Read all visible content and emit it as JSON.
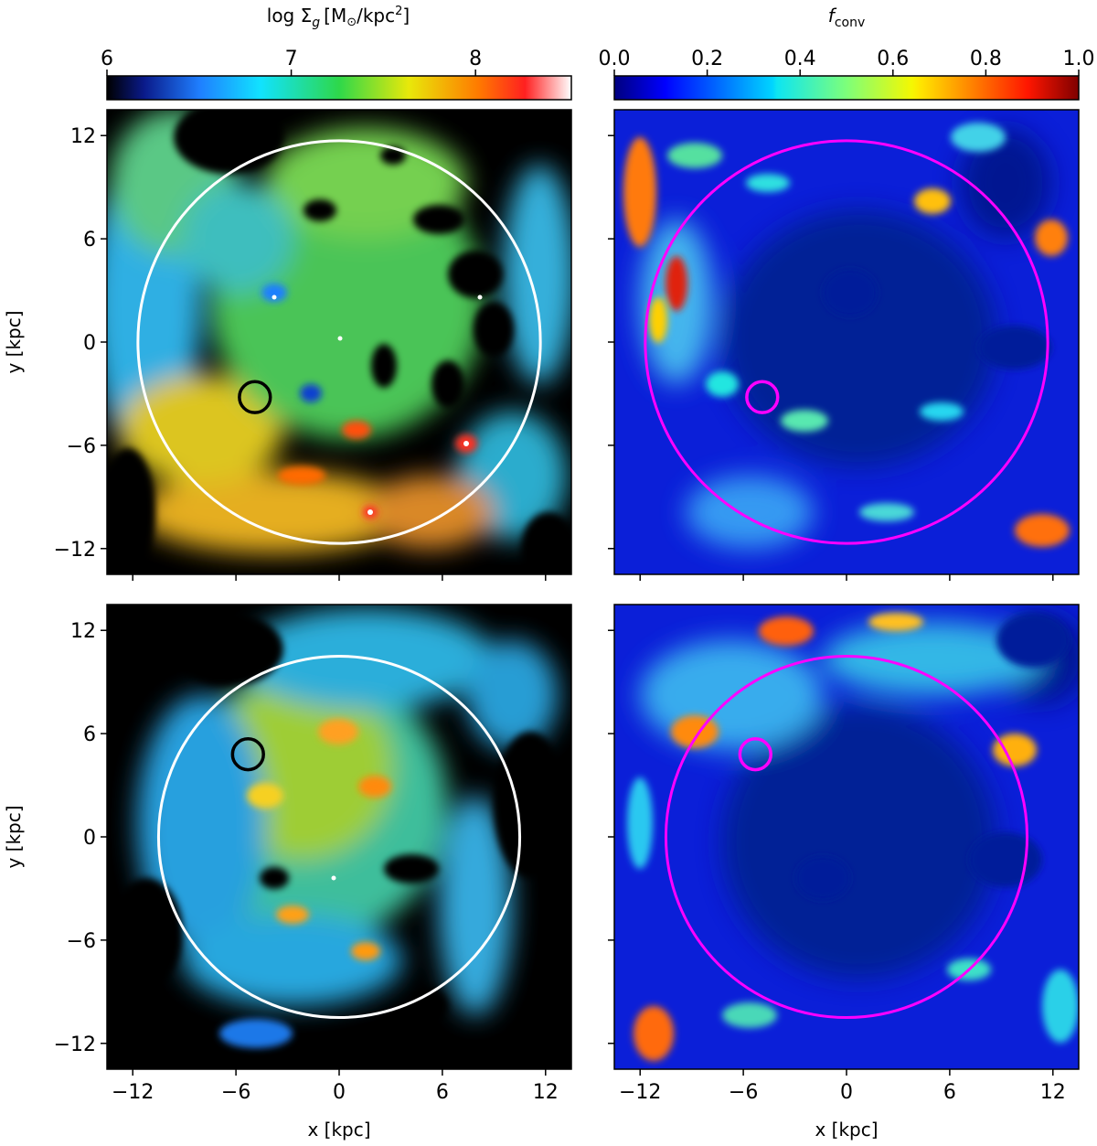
{
  "figure": {
    "colorbars": [
      {
        "label_main": "log Σ",
        "label_sub": "g",
        "label_units": "[M",
        "label_sun": "⊙",
        "label_tail": "/kpc",
        "label_sup": "2",
        "label_end": "]",
        "colormap": "jet",
        "range": [
          6,
          8.52
        ],
        "ticks": [
          "6",
          "7",
          "8"
        ],
        "tick_values": [
          6,
          7,
          8
        ],
        "top_color": "#ffffff"
      },
      {
        "label_main": "f",
        "label_sub": "conv",
        "colormap": "jet",
        "range": [
          0.0,
          1.0
        ],
        "ticks": [
          "0.0",
          "0.2",
          "0.4",
          "0.6",
          "0.8",
          "1.0"
        ],
        "tick_values": [
          0.0,
          0.2,
          0.4,
          0.6,
          0.8,
          1.0
        ]
      }
    ]
  },
  "chart_data": [
    {
      "type": "heatmap",
      "quantity": "log Σg [M⊙/kpc²]",
      "xlim": [
        -13.5,
        13.5
      ],
      "ylim": [
        -13.5,
        13.5
      ],
      "ylabel": "y [kpc]",
      "xlabel": "",
      "yticks": [
        -12,
        -6,
        0,
        6,
        12
      ],
      "ytick_labels": [
        "−12",
        "−6",
        "0",
        "6",
        "12"
      ],
      "xticks": [
        -12,
        -6,
        0,
        6,
        12
      ],
      "show_xtick_labels": false,
      "background": "#000000",
      "circles": [
        {
          "cx": 0,
          "cy": 0,
          "r": 11.7,
          "color": "#ffffff"
        },
        {
          "cx": -4.9,
          "cy": -3.2,
          "r": 0.9,
          "color": "#000000"
        }
      ]
    },
    {
      "type": "heatmap",
      "quantity": "f_conv",
      "xlim": [
        -13.5,
        13.5
      ],
      "ylim": [
        -13.5,
        13.5
      ],
      "yticks": [
        -12,
        -6,
        0,
        6,
        12
      ],
      "xticks": [
        -12,
        -6,
        0,
        6,
        12
      ],
      "show_ytick_labels": false,
      "show_xtick_labels": false,
      "background": "#00007a",
      "circles": [
        {
          "cx": 0,
          "cy": 0,
          "r": 11.7,
          "color": "#ff00ff"
        },
        {
          "cx": -4.9,
          "cy": -3.2,
          "r": 0.9,
          "color": "#ff00ff"
        }
      ]
    },
    {
      "type": "heatmap",
      "quantity": "log Σg [M⊙/kpc²]",
      "xlim": [
        -13.5,
        13.5
      ],
      "ylim": [
        -13.5,
        13.5
      ],
      "ylabel": "y [kpc]",
      "xlabel": "x [kpc]",
      "yticks": [
        -12,
        -6,
        0,
        6,
        12
      ],
      "ytick_labels": [
        "−12",
        "−6",
        "0",
        "6",
        "12"
      ],
      "xticks": [
        -12,
        -6,
        0,
        6,
        12
      ],
      "xtick_labels": [
        "−12",
        "−6",
        "0",
        "6",
        "12"
      ],
      "background": "#000000",
      "circles": [
        {
          "cx": 0,
          "cy": 0,
          "r": 10.5,
          "color": "#ffffff"
        },
        {
          "cx": -5.3,
          "cy": 4.8,
          "r": 0.9,
          "color": "#000000"
        }
      ]
    },
    {
      "type": "heatmap",
      "quantity": "f_conv",
      "xlim": [
        -13.5,
        13.5
      ],
      "ylim": [
        -13.5,
        13.5
      ],
      "xlabel": "x [kpc]",
      "yticks": [
        -12,
        -6,
        0,
        6,
        12
      ],
      "xticks": [
        -12,
        -6,
        0,
        6,
        12
      ],
      "xtick_labels": [
        "−12",
        "−6",
        "0",
        "6",
        "12"
      ],
      "show_ytick_labels": false,
      "background": "#00007a",
      "circles": [
        {
          "cx": 0,
          "cy": 0,
          "r": 10.5,
          "color": "#ff00ff"
        },
        {
          "cx": -5.3,
          "cy": 4.8,
          "r": 0.9,
          "color": "#ff00ff"
        }
      ]
    }
  ]
}
